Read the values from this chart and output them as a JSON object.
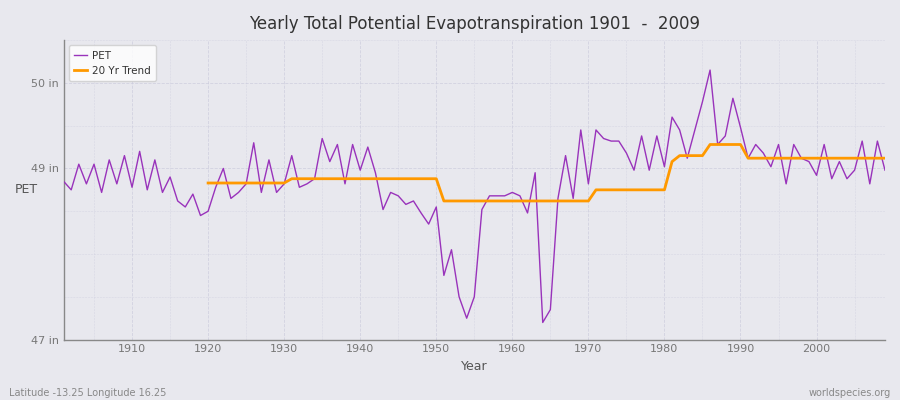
{
  "title": "Yearly Total Potential Evapotranspiration 1901  -  2009",
  "xlabel": "Year",
  "ylabel": "PET",
  "bottom_left": "Latitude -13.25 Longitude 16.25",
  "bottom_right": "worldspecies.org",
  "ylim": [
    47.0,
    50.5
  ],
  "yticks": [
    47,
    49,
    50
  ],
  "ytick_labels": [
    "47 in",
    "49 in",
    "50 in"
  ],
  "xlim": [
    1901,
    2009
  ],
  "xticks": [
    1910,
    1920,
    1930,
    1940,
    1950,
    1960,
    1970,
    1980,
    1990,
    2000
  ],
  "pet_color": "#9933bb",
  "trend_color": "#ff9900",
  "bg_color": "#e8e8ee",
  "plot_bg_color": "#e8e8ee",
  "grid_color": "#ccccdd",
  "legend_labels": [
    "PET",
    "20 Yr Trend"
  ],
  "pet_values": [
    48.85,
    48.75,
    49.05,
    48.82,
    49.05,
    48.72,
    49.1,
    48.82,
    49.15,
    48.78,
    49.2,
    48.75,
    49.1,
    48.72,
    48.9,
    48.62,
    48.55,
    48.7,
    48.45,
    48.5,
    48.78,
    49.0,
    48.65,
    48.72,
    48.82,
    49.3,
    48.72,
    49.1,
    48.72,
    48.82,
    49.15,
    48.78,
    48.82,
    48.88,
    49.35,
    49.08,
    49.28,
    48.82,
    49.28,
    48.98,
    49.25,
    48.95,
    48.52,
    48.72,
    48.68,
    48.58,
    48.62,
    48.48,
    48.35,
    48.55,
    47.75,
    48.05,
    47.5,
    47.25,
    47.5,
    48.52,
    48.68,
    48.68,
    48.68,
    48.72,
    48.68,
    48.48,
    48.95,
    47.2,
    47.35,
    48.65,
    49.15,
    48.65,
    49.45,
    48.82,
    49.45,
    49.35,
    49.32,
    49.32,
    49.18,
    48.98,
    49.38,
    48.98,
    49.38,
    49.02,
    49.6,
    49.45,
    49.12,
    49.45,
    49.78,
    50.15,
    49.28,
    49.38,
    49.82,
    49.48,
    49.12,
    49.28,
    49.18,
    49.02,
    49.28,
    48.82,
    49.28,
    49.12,
    49.08,
    48.92,
    49.28,
    48.88,
    49.08,
    48.88,
    48.98,
    49.32,
    48.82,
    49.32,
    48.98
  ],
  "trend_values": [
    null,
    null,
    null,
    null,
    null,
    null,
    null,
    null,
    null,
    null,
    null,
    null,
    null,
    null,
    null,
    null,
    null,
    null,
    null,
    48.83,
    48.83,
    48.83,
    48.83,
    48.83,
    48.83,
    48.83,
    48.83,
    48.83,
    48.83,
    48.83,
    48.88,
    48.88,
    48.88,
    48.88,
    48.88,
    48.88,
    48.88,
    48.88,
    48.88,
    48.88,
    48.88,
    48.88,
    48.88,
    48.88,
    48.88,
    48.88,
    48.88,
    48.88,
    48.88,
    48.88,
    48.62,
    48.62,
    48.62,
    48.62,
    48.62,
    48.62,
    48.62,
    48.62,
    48.62,
    48.62,
    48.62,
    48.62,
    48.62,
    48.62,
    48.62,
    48.62,
    48.62,
    48.62,
    48.62,
    48.62,
    48.75,
    48.75,
    48.75,
    48.75,
    48.75,
    48.75,
    48.75,
    48.75,
    48.75,
    48.75,
    49.08,
    49.15,
    49.15,
    49.15,
    49.15,
    49.28,
    49.28,
    49.28,
    49.28,
    49.28,
    49.12,
    49.12,
    49.12,
    49.12,
    49.12,
    49.12,
    49.12,
    49.12,
    49.12,
    49.12,
    49.12,
    49.12,
    49.12,
    49.12,
    49.12,
    49.12,
    49.12,
    49.12,
    49.12
  ]
}
